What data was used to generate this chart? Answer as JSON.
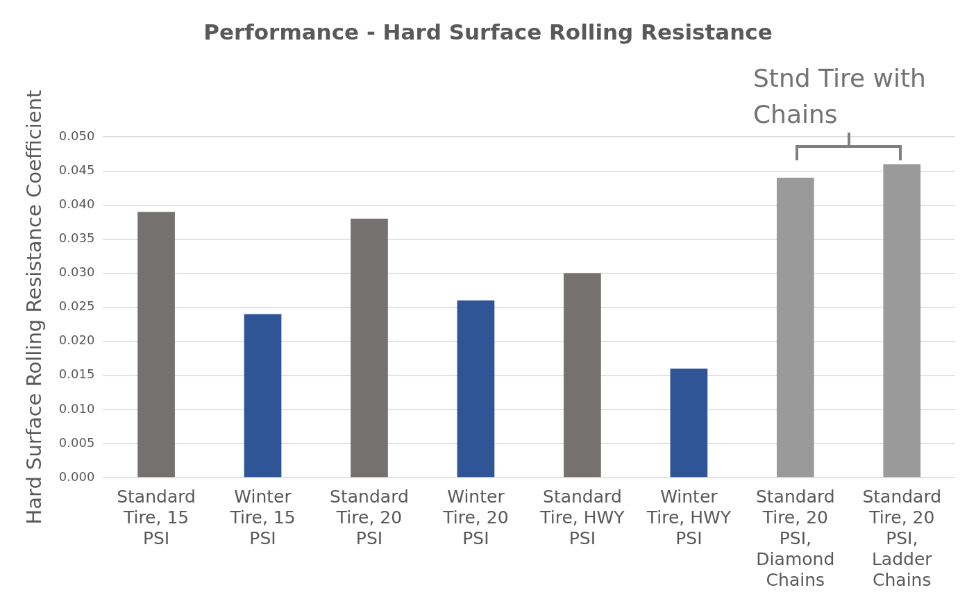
{
  "chart_data": {
    "type": "bar",
    "title": "Performance - Hard Surface Rolling Resistance",
    "ylabel": "Hard Surface Rolling Resistance Coefficient",
    "categories": [
      "Standard Tire, 15 PSI",
      "Winter Tire, 15 PSI",
      "Standard Tire, 20 PSI",
      "Winter Tire, 20 PSI",
      "Standard Tire, HWY PSI",
      "Winter Tire, HWY PSI",
      "Standard Tire, 20 PSI, Diamond Chains",
      "Standard Tire, 20 PSI, Ladder Chains"
    ],
    "values": [
      0.039,
      0.024,
      0.038,
      0.026,
      0.03,
      0.016,
      0.044,
      0.046
    ],
    "colors": [
      "#767171",
      "#2f5597",
      "#767171",
      "#2f5597",
      "#767171",
      "#2f5597",
      "#9a9a9a",
      "#9a9a9a"
    ],
    "ylim": [
      0,
      0.05
    ],
    "yticks": [
      {
        "value": 0,
        "label": "0.000"
      },
      {
        "value": 0.005,
        "label": "0.005"
      },
      {
        "value": 0.01,
        "label": "0.010"
      },
      {
        "value": 0.015,
        "label": "0.015"
      },
      {
        "value": 0.02,
        "label": "0.020"
      },
      {
        "value": 0.025,
        "label": "0.025"
      },
      {
        "value": 0.03,
        "label": "0.030"
      },
      {
        "value": 0.035,
        "label": "0.035"
      },
      {
        "value": 0.04,
        "label": "0.040"
      },
      {
        "value": 0.045,
        "label": "0.045"
      },
      {
        "value": 0.05,
        "label": "0.050"
      }
    ],
    "grid": "y",
    "legend": false,
    "annotations": [
      "Stnd Tire with Chains"
    ]
  }
}
